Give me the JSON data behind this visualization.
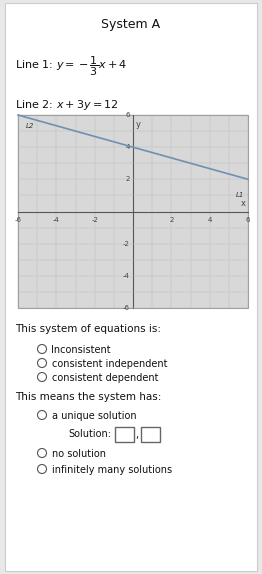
{
  "title": "System A",
  "line1_text": "Line 1: $y = -\\dfrac{1}{3}x+4$",
  "line2_text": "Line 2: $x+3y=12$",
  "xlim": [
    -6,
    6
  ],
  "ylim": [
    -6,
    6
  ],
  "xticks": [
    -6,
    -4,
    -2,
    2,
    4,
    6
  ],
  "yticks": [
    -6,
    -4,
    -2,
    2,
    4,
    6
  ],
  "line_color": "#7090b0",
  "line2_color": "#8899aa",
  "label_L2": "L2",
  "label_L1": "L1",
  "system_question": "This system of equations is:",
  "options_system": [
    "Inconsistent",
    "consistent independent",
    "consistent dependent"
  ],
  "means_question": "This means the system has:",
  "option_unique": "a unique solution",
  "solution_label": "Solution:",
  "options_means2": [
    "no solution",
    "infinitely many solutions"
  ],
  "bg_color": "#e8e8e8",
  "card_color": "#f0f0f0",
  "graph_bg": "#d8d8d8",
  "grid_color": "#bbbbbb",
  "axis_color": "#555555",
  "text_color": "#111111",
  "radio_color": "#555555",
  "font_title": 9,
  "font_eq": 8,
  "font_body": 7,
  "font_graph": 5
}
